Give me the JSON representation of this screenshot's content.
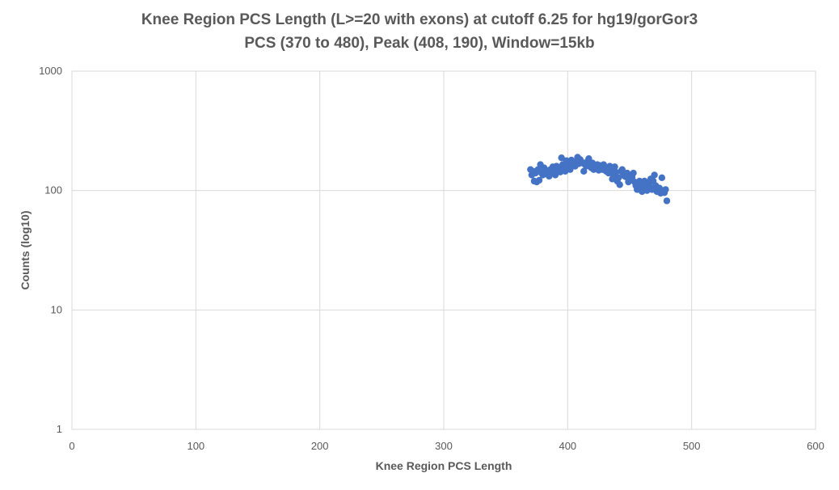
{
  "chart_data": {
    "type": "scatter",
    "title": "Knee Region PCS Length (L>=20 with exons) at cutoff 6.25 for hg19/gorGor3",
    "subtitle": "PCS (370 to 480), Peak (408, 190), Window=15kb",
    "xlabel": "Knee Region PCS Length",
    "ylabel": "Counts (log10)",
    "xlim": [
      0,
      600
    ],
    "ylim": [
      1,
      1000
    ],
    "yscale": "log",
    "xticks": [
      0,
      100,
      200,
      300,
      400,
      500,
      600
    ],
    "yticks": [
      1,
      10,
      100,
      1000
    ],
    "xtick_labels": [
      "0",
      "100",
      "200",
      "300",
      "400",
      "500",
      "600"
    ],
    "ytick_labels": [
      "1",
      "10",
      "100",
      "1000"
    ],
    "grid": true,
    "legend": "none",
    "marker_color": "#4472C4",
    "points": [
      [
        370,
        150
      ],
      [
        371,
        135
      ],
      [
        372,
        145
      ],
      [
        373,
        120
      ],
      [
        374,
        140
      ],
      [
        375,
        118
      ],
      [
        376,
        150
      ],
      [
        377,
        122
      ],
      [
        378,
        165
      ],
      [
        379,
        140
      ],
      [
        380,
        135
      ],
      [
        381,
        155
      ],
      [
        382,
        148
      ],
      [
        383,
        138
      ],
      [
        384,
        145
      ],
      [
        385,
        132
      ],
      [
        386,
        150
      ],
      [
        387,
        145
      ],
      [
        388,
        158
      ],
      [
        389,
        140
      ],
      [
        390,
        135
      ],
      [
        391,
        160
      ],
      [
        392,
        150
      ],
      [
        393,
        155
      ],
      [
        394,
        143
      ],
      [
        395,
        188
      ],
      [
        396,
        165
      ],
      [
        397,
        150
      ],
      [
        398,
        145
      ],
      [
        399,
        178
      ],
      [
        400,
        170
      ],
      [
        401,
        160
      ],
      [
        402,
        150
      ],
      [
        403,
        180
      ],
      [
        404,
        175
      ],
      [
        405,
        165
      ],
      [
        406,
        160
      ],
      [
        407,
        172
      ],
      [
        408,
        190
      ],
      [
        409,
        168
      ],
      [
        410,
        182
      ],
      [
        411,
        175
      ],
      [
        412,
        170
      ],
      [
        413,
        145
      ],
      [
        414,
        165
      ],
      [
        415,
        160
      ],
      [
        416,
        175
      ],
      [
        417,
        185
      ],
      [
        418,
        165
      ],
      [
        419,
        155
      ],
      [
        420,
        170
      ],
      [
        421,
        150
      ],
      [
        422,
        160
      ],
      [
        423,
        158
      ],
      [
        424,
        165
      ],
      [
        425,
        148
      ],
      [
        426,
        162
      ],
      [
        427,
        152
      ],
      [
        428,
        150
      ],
      [
        429,
        165
      ],
      [
        430,
        158
      ],
      [
        431,
        145
      ],
      [
        432,
        150
      ],
      [
        433,
        140
      ],
      [
        434,
        160
      ],
      [
        435,
        148
      ],
      [
        436,
        125
      ],
      [
        437,
        135
      ],
      [
        438,
        158
      ],
      [
        439,
        142
      ],
      [
        440,
        120
      ],
      [
        441,
        128
      ],
      [
        442,
        112
      ],
      [
        443,
        145
      ],
      [
        444,
        150
      ],
      [
        445,
        138
      ],
      [
        446,
        132
      ],
      [
        447,
        130
      ],
      [
        448,
        140
      ],
      [
        449,
        118
      ],
      [
        450,
        128
      ],
      [
        451,
        125
      ],
      [
        452,
        130
      ],
      [
        453,
        140
      ],
      [
        454,
        118
      ],
      [
        455,
        110
      ],
      [
        456,
        102
      ],
      [
        457,
        112
      ],
      [
        458,
        120
      ],
      [
        459,
        105
      ],
      [
        460,
        98
      ],
      [
        461,
        110
      ],
      [
        462,
        120
      ],
      [
        463,
        105
      ],
      [
        464,
        100
      ],
      [
        465,
        115
      ],
      [
        466,
        108
      ],
      [
        467,
        125
      ],
      [
        468,
        102
      ],
      [
        469,
        120
      ],
      [
        470,
        135
      ],
      [
        471,
        110
      ],
      [
        472,
        98
      ],
      [
        473,
        102
      ],
      [
        474,
        105
      ],
      [
        475,
        95
      ],
      [
        476,
        128
      ],
      [
        477,
        100
      ],
      [
        478,
        96
      ],
      [
        479,
        102
      ],
      [
        480,
        82
      ]
    ]
  }
}
